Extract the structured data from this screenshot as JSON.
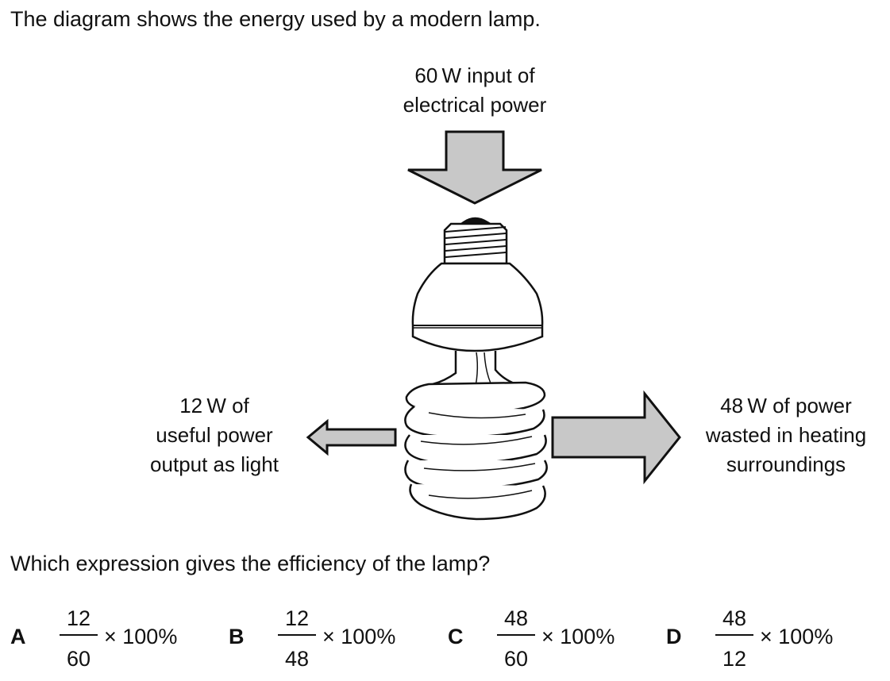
{
  "intro_text": "The diagram shows the energy used by a modern lamp.",
  "labels": {
    "input": [
      "60 W input of",
      "electrical power"
    ],
    "useful": [
      "12 W of",
      "useful power",
      "output as light"
    ],
    "wasted": [
      "48 W of power",
      "wasted in heating",
      "surroundings"
    ]
  },
  "question": "Which expression gives the efficiency of the lamp?",
  "options": [
    {
      "letter": "A",
      "numerator": "12",
      "denominator": "60",
      "suffix": "× 100%"
    },
    {
      "letter": "B",
      "numerator": "12",
      "denominator": "48",
      "suffix": "× 100%"
    },
    {
      "letter": "C",
      "numerator": "48",
      "denominator": "60",
      "suffix": "× 100%"
    },
    {
      "letter": "D",
      "numerator": "48",
      "denominator": "12",
      "suffix": "× 100%"
    }
  ],
  "colors": {
    "arrow_fill": "#c8c8c8",
    "outline": "#111111"
  }
}
